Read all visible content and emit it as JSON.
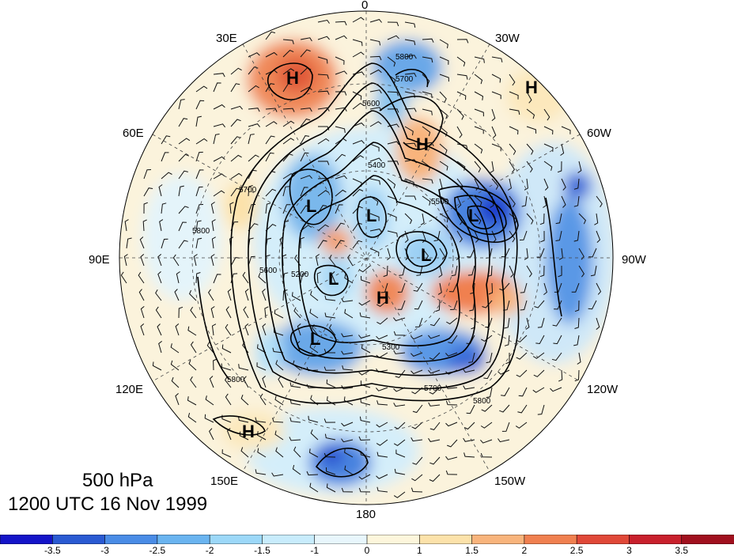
{
  "titles": {
    "level": "500 hPa",
    "time": "1200 UTC 16 Nov 1999"
  },
  "longitude_labels": {
    "lon_0": "0",
    "lon_30w": "30W",
    "lon_60w": "60W",
    "lon_90w": "90W",
    "lon_120w": "120W",
    "lon_150w": "150W",
    "lon_180": "180",
    "lon_150e": "150E",
    "lon_120e": "120E",
    "lon_90e": "90E",
    "lon_60e": "60E",
    "lon_30e": "30E"
  },
  "pressure_centers": {
    "highs": [
      "H",
      "H",
      "H",
      "H",
      "H"
    ],
    "lows": [
      "L",
      "L",
      "L",
      "L",
      "L",
      "L"
    ]
  },
  "contour_labels": [
    "5800",
    "5700",
    "5600",
    "5500",
    "5400",
    "5300",
    "5200",
    "5700",
    "5800",
    "5600",
    "5800",
    "5700",
    "5800"
  ],
  "colorbar": {
    "ticks": [
      "-3.5",
      "-3",
      "-2.5",
      "-2",
      "-1.5",
      "-1",
      "0",
      "1",
      "1.5",
      "2",
      "2.5",
      "3",
      "3.5"
    ],
    "colors": [
      "#1414c8",
      "#2a5ad2",
      "#4a8ce6",
      "#6ab4f0",
      "#9cd8f8",
      "#c8ecfc",
      "#e8f6fc",
      "#fdf6dc",
      "#fce2aa",
      "#f8b47c",
      "#f08050",
      "#e04838",
      "#c8202c",
      "#a0101e"
    ]
  }
}
